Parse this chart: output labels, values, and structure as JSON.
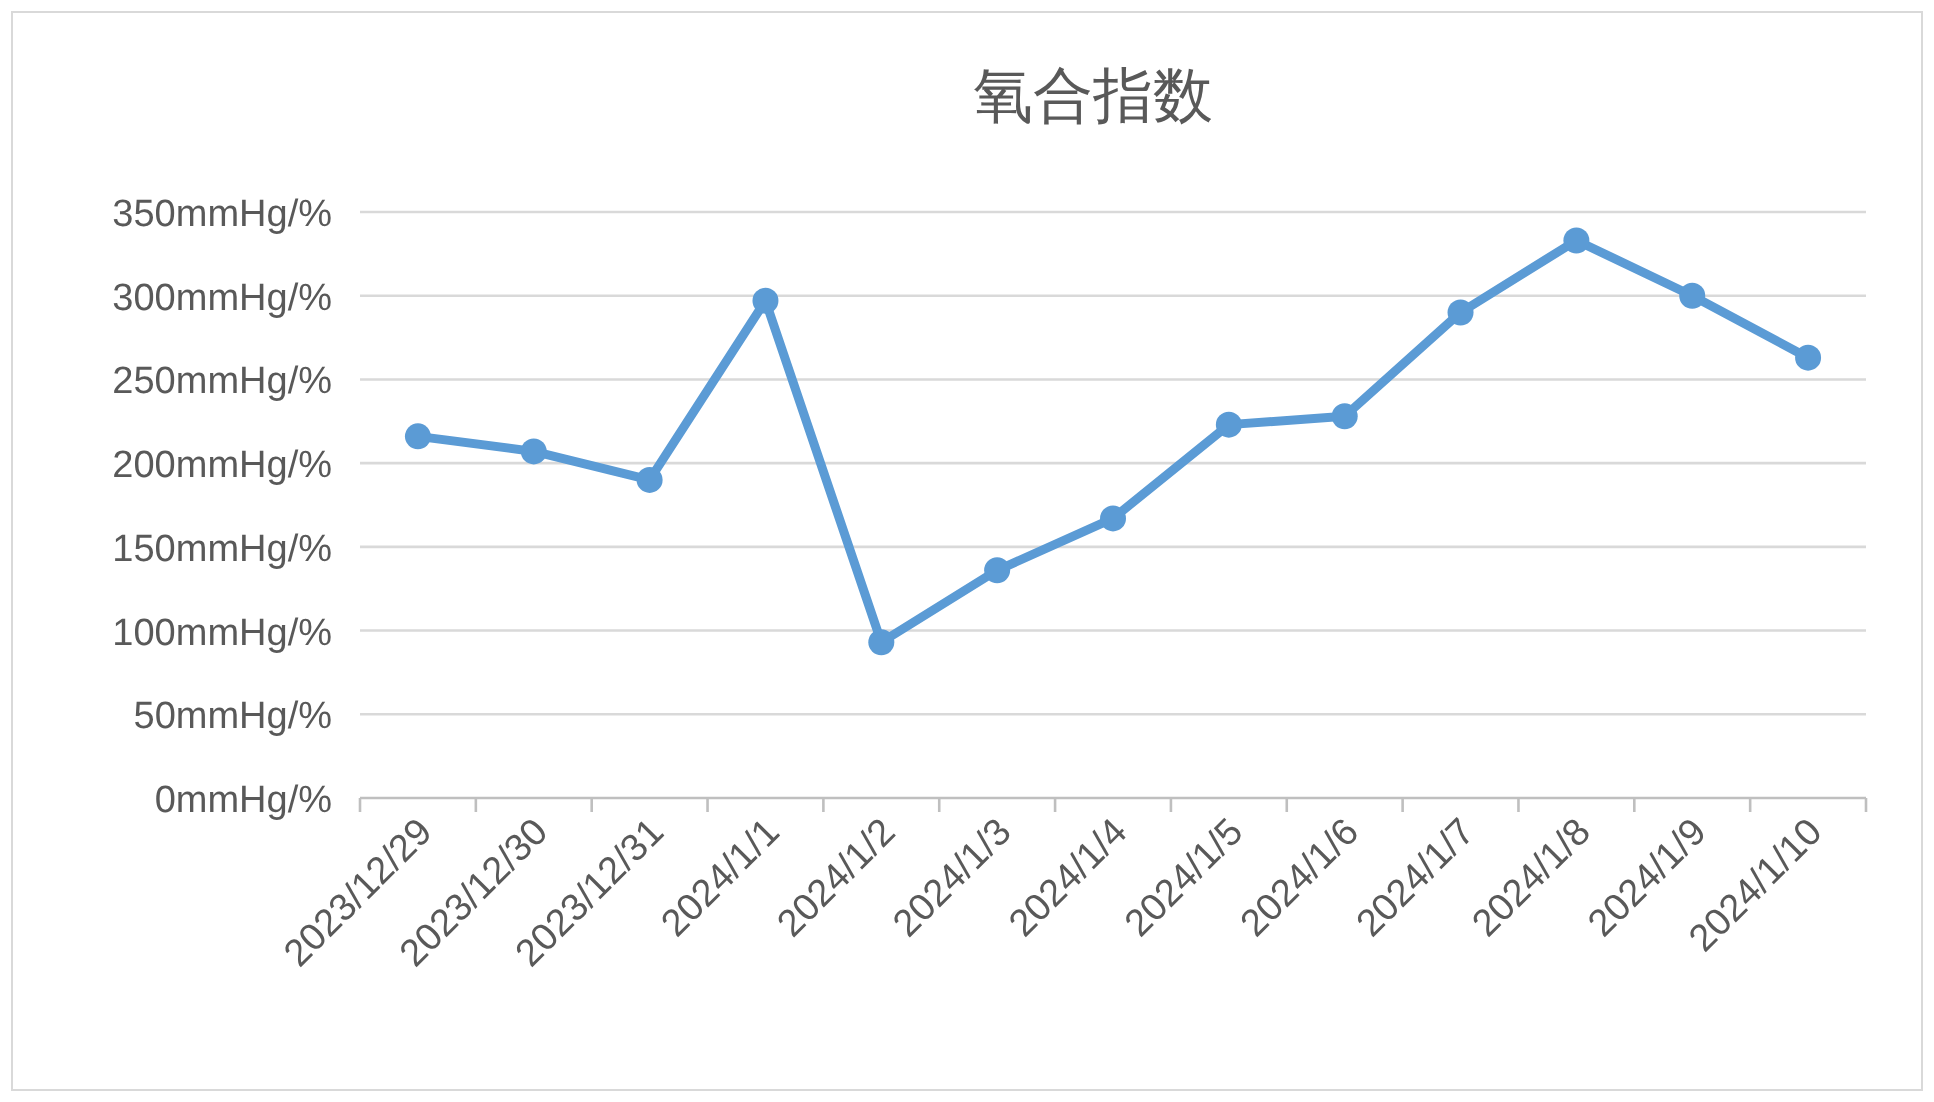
{
  "chart_data": {
    "type": "line",
    "title": "氧合指数",
    "categories": [
      "2023/12/29",
      "2023/12/30",
      "2023/12/31",
      "2024/1/1",
      "2024/1/2",
      "2024/1/3",
      "2024/1/4",
      "2024/1/5",
      "2024/1/6",
      "2024/1/7",
      "2024/1/8",
      "2024/1/9",
      "2024/1/10"
    ],
    "series": [
      {
        "color": "#5b9bd5",
        "values": [
          216,
          207,
          190,
          297,
          93,
          136,
          167,
          223,
          228,
          290,
          333,
          300,
          263
        ]
      }
    ],
    "ylim": [
      0,
      350
    ],
    "yticks": [
      {
        "value": 0,
        "label": "0mmHg/%"
      },
      {
        "value": 50,
        "label": "50mmHg/%"
      },
      {
        "value": 100,
        "label": "100mmHg/%"
      },
      {
        "value": 150,
        "label": "150mmHg/%"
      },
      {
        "value": 200,
        "label": "200mmHg/%"
      },
      {
        "value": 250,
        "label": "250mmHg/%"
      },
      {
        "value": 300,
        "label": "300mmHg/%"
      },
      {
        "value": 350,
        "label": "350mmHg/%"
      }
    ],
    "grid": "y",
    "marker": "circle",
    "line_style": "solid"
  }
}
